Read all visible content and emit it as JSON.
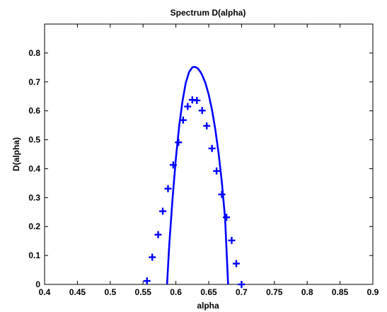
{
  "chart_data": {
    "type": "scatter",
    "title": "Spectrum D(alpha)",
    "xlabel": "alpha",
    "ylabel": "D(alpha)",
    "xlim": [
      0.4,
      0.9
    ],
    "ylim": [
      0,
      0.9
    ],
    "xticks": [
      "0.4",
      "0.45",
      "0.5",
      "0.55",
      "0.6",
      "0.65",
      "0.7",
      "0.75",
      "0.8",
      "0.85",
      "0.9"
    ],
    "yticks": [
      "0",
      "0.1",
      "0.2",
      "0.3",
      "0.4",
      "0.5",
      "0.6",
      "0.7",
      "0.8"
    ],
    "grid": false,
    "legend": "none",
    "color": "#0000ff",
    "series": [
      {
        "style": "markers-plus",
        "x": [
          0.556,
          0.564,
          0.573,
          0.58,
          0.588,
          0.596,
          0.604,
          0.611,
          0.618,
          0.625,
          0.632,
          0.64,
          0.647,
          0.655,
          0.662,
          0.67,
          0.677,
          0.685,
          0.692,
          0.7
        ],
        "y": [
          0.012,
          0.094,
          0.172,
          0.253,
          0.331,
          0.413,
          0.491,
          0.568,
          0.615,
          0.638,
          0.636,
          0.601,
          0.548,
          0.47,
          0.392,
          0.311,
          0.232,
          0.152,
          0.072,
          0.0
        ]
      },
      {
        "style": "line",
        "x": [
          0.5865,
          0.59,
          0.595,
          0.6,
          0.605,
          0.61,
          0.615,
          0.62,
          0.625,
          0.628,
          0.631,
          0.634,
          0.637,
          0.64,
          0.645,
          0.65,
          0.655,
          0.66,
          0.665,
          0.67,
          0.675,
          0.6795
        ],
        "y": [
          0.0,
          0.14,
          0.3,
          0.436,
          0.546,
          0.633,
          0.696,
          0.734,
          0.75,
          0.752,
          0.75,
          0.745,
          0.736,
          0.724,
          0.696,
          0.656,
          0.604,
          0.536,
          0.455,
          0.353,
          0.226,
          0.0
        ]
      }
    ]
  }
}
